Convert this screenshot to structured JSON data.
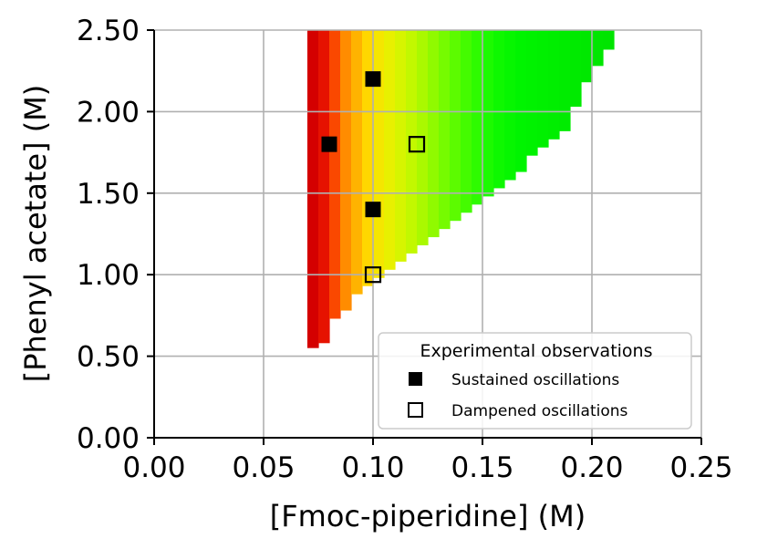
{
  "chart_data": {
    "type": "heatmap",
    "title": "",
    "xlabel": "[Fmoc-piperidine] (M)",
    "ylabel": "[Phenyl acetate] (M)",
    "xlim": [
      0.0,
      0.25
    ],
    "ylim": [
      0.0,
      2.5
    ],
    "xticks": [
      "0.00",
      "0.05",
      "0.10",
      "0.15",
      "0.20",
      "0.25"
    ],
    "yticks": [
      "0.00",
      "0.50",
      "1.00",
      "1.50",
      "2.00",
      "2.50"
    ],
    "grid": true,
    "oscillation_region": {
      "x_start": 0.07,
      "x_step": 0.005,
      "y_top": 2.5,
      "column_min_y": [
        0.55,
        0.58,
        0.73,
        0.78,
        0.88,
        0.93,
        0.98,
        1.03,
        1.08,
        1.13,
        1.18,
        1.23,
        1.28,
        1.33,
        1.38,
        1.43,
        1.48,
        1.53,
        1.58,
        1.63,
        1.73,
        1.78,
        1.83,
        1.88,
        2.03,
        2.18,
        2.28,
        2.38
      ],
      "colormap": [
        "#d40000",
        "#e61200",
        "#fa4800",
        "#ff8c00",
        "#ffb300",
        "#ffd700",
        "#f5e600",
        "#e8f000",
        "#d6f500",
        "#c2f800",
        "#aaf900",
        "#90fa00",
        "#76fb00",
        "#5cfb00",
        "#44fb00",
        "#2efb00",
        "#1cfa00",
        "#0ef800",
        "#06f600",
        "#00f400",
        "#00f200",
        "#00f000",
        "#00ee00",
        "#00ec00",
        "#00ea00",
        "#00e800",
        "#00e600",
        "#00e500"
      ]
    },
    "legend": {
      "title": "Experimental observations",
      "position": "lower-right",
      "entries": [
        {
          "label": "Sustained oscillations",
          "marker": "filled-square"
        },
        {
          "label": "Dampened oscillations",
          "marker": "open-square"
        }
      ]
    },
    "series": [
      {
        "name": "Sustained oscillations",
        "marker": "filled-square",
        "points": [
          {
            "x": 0.1,
            "y": 2.2
          },
          {
            "x": 0.08,
            "y": 1.8
          },
          {
            "x": 0.1,
            "y": 1.4
          }
        ]
      },
      {
        "name": "Dampened oscillations",
        "marker": "open-square",
        "points": [
          {
            "x": 0.12,
            "y": 1.8
          },
          {
            "x": 0.1,
            "y": 1.0
          }
        ]
      }
    ]
  }
}
